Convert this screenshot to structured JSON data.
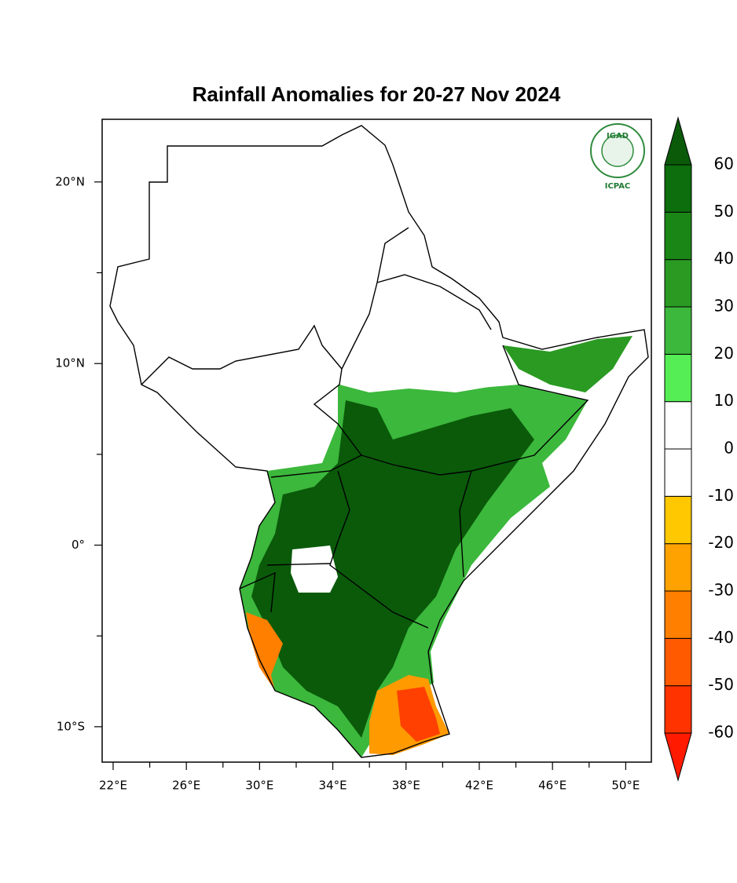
{
  "chart_data": {
    "type": "map",
    "title": "Rainfall Anomalies for 20-27 Nov 2024",
    "logo": {
      "top": "IGAD",
      "bottom": "ICPAC"
    },
    "xlim": [
      21.4,
      51.4
    ],
    "ylim": [
      -11.95,
      23.45
    ],
    "xticks": [
      {
        "value": 22,
        "label": "22°E"
      },
      {
        "value": 26,
        "label": "26°E"
      },
      {
        "value": 30,
        "label": "30°E"
      },
      {
        "value": 34,
        "label": "34°E"
      },
      {
        "value": 38,
        "label": "38°E"
      },
      {
        "value": 42,
        "label": "42°E"
      },
      {
        "value": 46,
        "label": "46°E"
      },
      {
        "value": 50,
        "label": "50°E"
      }
    ],
    "xticks_minor": [
      24,
      28,
      32,
      36,
      40,
      44,
      48
    ],
    "yticks": [
      {
        "value": 20,
        "label": "20°N"
      },
      {
        "value": 10,
        "label": "10°N"
      },
      {
        "value": 0,
        "label": "0°"
      },
      {
        "value": -10,
        "label": "10°S"
      }
    ],
    "yticks_minor": [
      15,
      5,
      -5
    ],
    "colorbar": {
      "levels": [
        -60,
        -50,
        -40,
        -30,
        -20,
        -10,
        0,
        10,
        20,
        30,
        40,
        50,
        60
      ],
      "colors": [
        "#ff1a00",
        "#ff3300",
        "#ff5a00",
        "#ff7f00",
        "#ffa200",
        "#ffc800",
        "#ffffff",
        "#ffffff",
        "#55ee55",
        "#3cb83c",
        "#2a9a22",
        "#1a8616",
        "#0c6e0c",
        "#0a5a0a"
      ]
    }
  }
}
